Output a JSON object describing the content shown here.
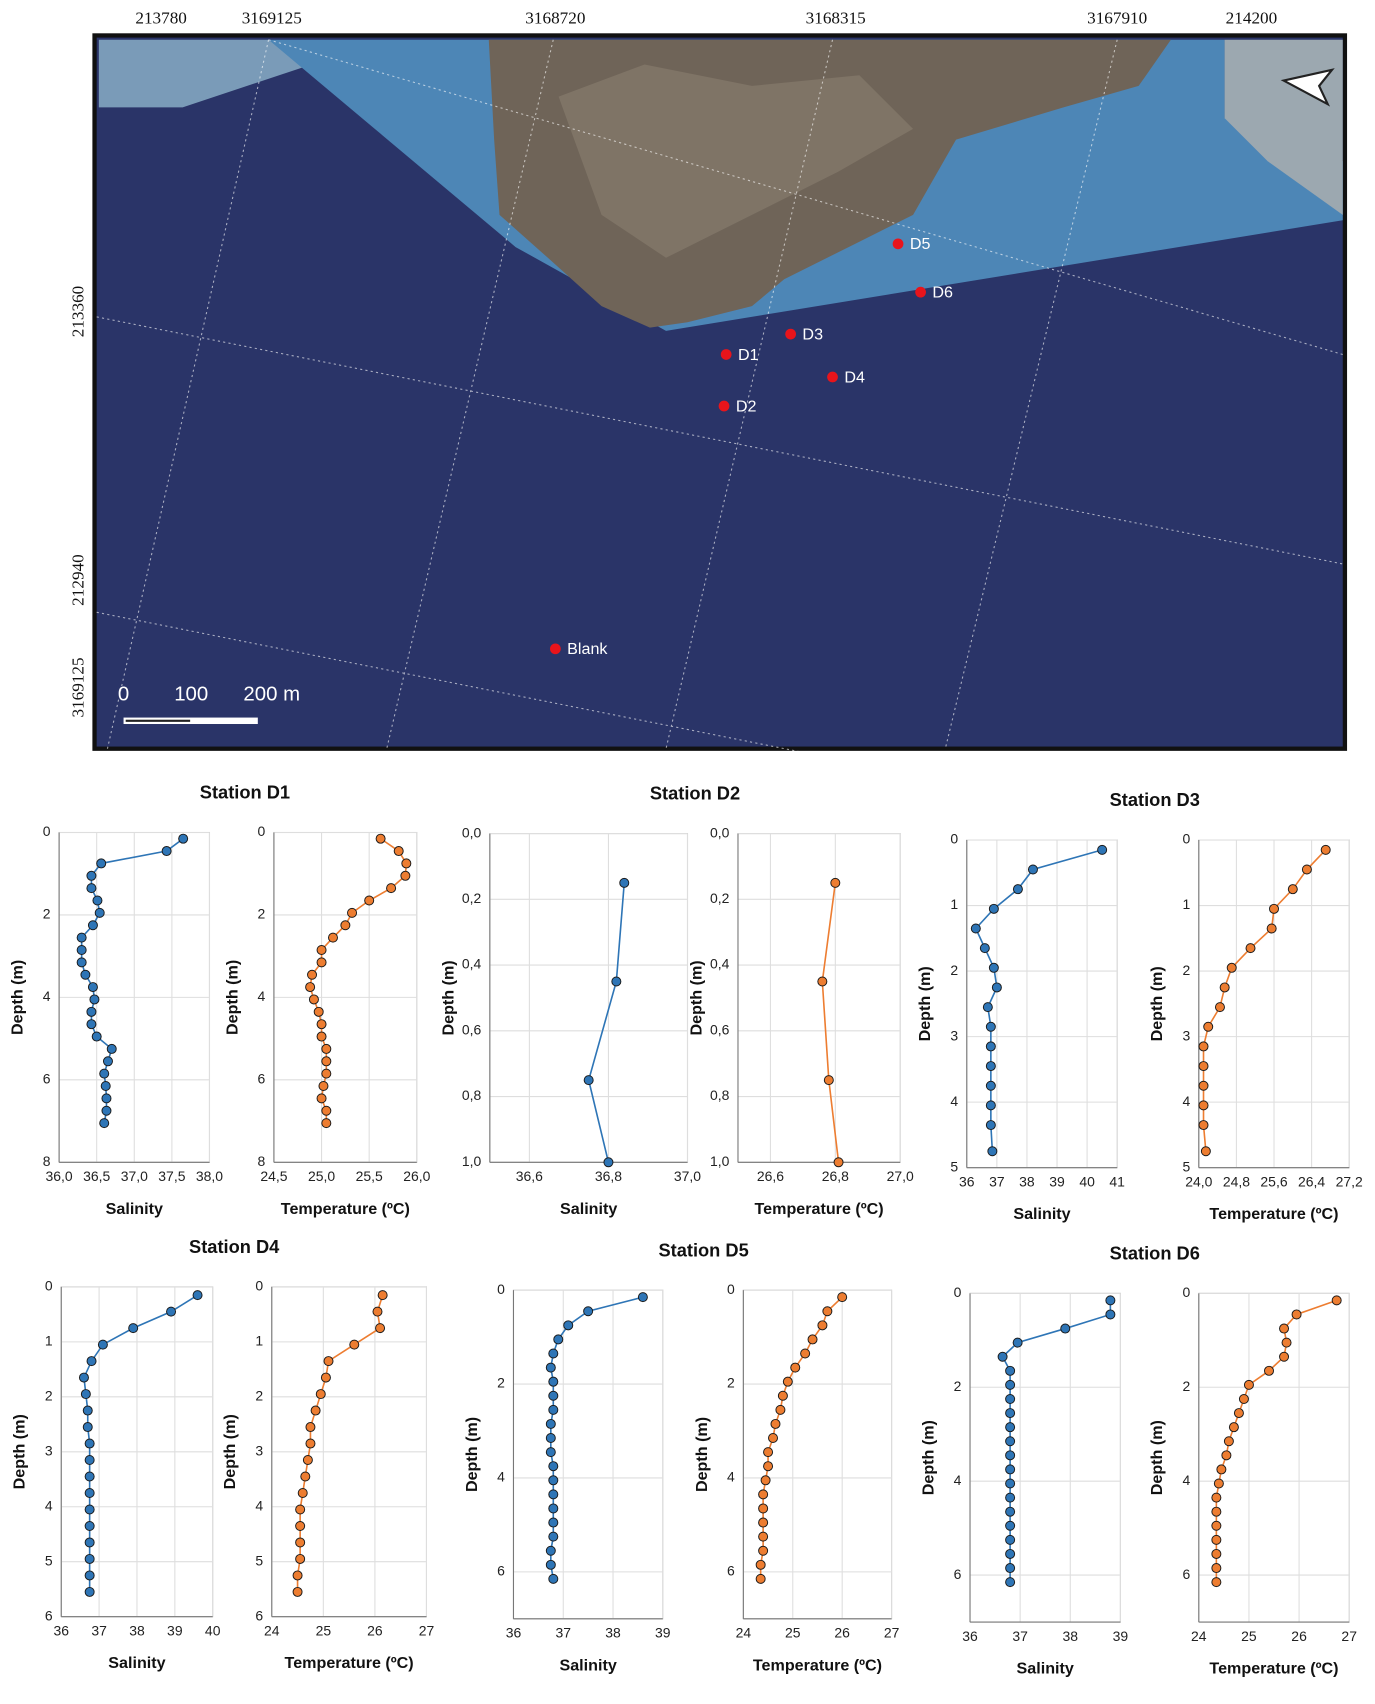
{
  "map": {
    "top_labels": [
      "213780",
      "3169125",
      "3168720",
      "3168315",
      "3167910",
      "214200"
    ],
    "left_labels": [
      "213360",
      "212940",
      "3169125"
    ],
    "scale_labels": [
      "0",
      "100",
      "200 m"
    ],
    "stations": [
      "D5",
      "D6",
      "D3",
      "D1",
      "D4",
      "D2",
      "Blank"
    ]
  },
  "chart_data": [
    {
      "type": "line",
      "title": "Station D1",
      "x_label": "Salinity",
      "y_label": "Depth (m)",
      "color": "#2e75b6",
      "y_inverted": true,
      "grid": true,
      "xlim": [
        36,
        38
      ],
      "xticks": [
        {
          "value": 36,
          "label": "36,0"
        },
        {
          "value": 36.5,
          "label": "36,5"
        },
        {
          "value": 37,
          "label": "37,0"
        },
        {
          "value": 37.5,
          "label": "37,5"
        },
        {
          "value": 38,
          "label": "38,0"
        }
      ],
      "ylim": [
        0,
        8
      ],
      "yticks": [
        0,
        2,
        4,
        6,
        8
      ],
      "depth": [
        0.15,
        0.45,
        0.75,
        1.05,
        1.35,
        1.65,
        1.95,
        2.25,
        2.55,
        2.85,
        3.15,
        3.45,
        3.75,
        4.05,
        4.35,
        4.65,
        4.95,
        5.25,
        5.55,
        5.85,
        6.15,
        6.45,
        6.75,
        7.05
      ],
      "values": [
        37.65,
        37.43,
        36.56,
        36.43,
        36.43,
        36.51,
        36.54,
        36.45,
        36.3,
        36.3,
        36.3,
        36.35,
        36.45,
        36.47,
        36.43,
        36.43,
        36.5,
        36.7,
        36.65,
        36.6,
        36.62,
        36.63,
        36.63,
        36.6
      ]
    },
    {
      "type": "line",
      "x_label": "Temperature (ºC)",
      "y_label": "Depth (m)",
      "color": "#ed7d31",
      "y_inverted": true,
      "grid": true,
      "xlim": [
        24.5,
        26
      ],
      "xticks": [
        {
          "value": 24.5,
          "label": "24,5"
        },
        {
          "value": 25,
          "label": "25,0"
        },
        {
          "value": 25.5,
          "label": "25,5"
        },
        {
          "value": 26,
          "label": "26,0"
        }
      ],
      "ylim": [
        0,
        8
      ],
      "yticks": [
        0,
        2,
        4,
        6,
        8
      ],
      "depth": [
        0.15,
        0.45,
        0.75,
        1.05,
        1.35,
        1.65,
        1.95,
        2.25,
        2.55,
        2.85,
        3.15,
        3.45,
        3.75,
        4.05,
        4.35,
        4.65,
        4.95,
        5.25,
        5.55,
        5.85,
        6.15,
        6.45,
        6.75,
        7.05
      ],
      "values": [
        25.62,
        25.81,
        25.89,
        25.88,
        25.73,
        25.5,
        25.32,
        25.25,
        25.12,
        25.0,
        25.0,
        24.9,
        24.88,
        24.92,
        24.97,
        25.0,
        25.0,
        25.05,
        25.05,
        25.05,
        25.02,
        25.0,
        25.05,
        25.05
      ]
    },
    {
      "type": "line",
      "title": "Station D2",
      "x_label": "Salinity",
      "y_label": "Depth (m)",
      "color": "#2e75b6",
      "y_inverted": true,
      "grid": true,
      "xlim": [
        36.5,
        37
      ],
      "xticks": [
        {
          "value": 36.6,
          "label": "36,6"
        },
        {
          "value": 36.8,
          "label": "36,8"
        },
        {
          "value": 37,
          "label": "37,0"
        }
      ],
      "ylim": [
        0,
        1
      ],
      "yticks": [
        {
          "value": 0,
          "label": "0,0"
        },
        {
          "value": 0.2,
          "label": "0,2"
        },
        {
          "value": 0.4,
          "label": "0,4"
        },
        {
          "value": 0.6,
          "label": "0,6"
        },
        {
          "value": 0.8,
          "label": "0,8"
        },
        {
          "value": 1,
          "label": "1,0"
        }
      ],
      "depth": [
        0.15,
        0.45,
        0.75,
        1.0
      ],
      "values": [
        36.84,
        36.82,
        36.75,
        36.8
      ]
    },
    {
      "type": "line",
      "x_label": "Temperature (ºC)",
      "y_label": "Depth (m)",
      "color": "#ed7d31",
      "y_inverted": true,
      "grid": true,
      "xlim": [
        26.5,
        27
      ],
      "xticks": [
        {
          "value": 26.6,
          "label": "26,6"
        },
        {
          "value": 26.8,
          "label": "26,8"
        },
        {
          "value": 27,
          "label": "27,0"
        }
      ],
      "ylim": [
        0,
        1
      ],
      "yticks": [
        {
          "value": 0,
          "label": "0,0"
        },
        {
          "value": 0.2,
          "label": "0,2"
        },
        {
          "value": 0.4,
          "label": "0,4"
        },
        {
          "value": 0.6,
          "label": "0,6"
        },
        {
          "value": 0.8,
          "label": "0,8"
        },
        {
          "value": 1,
          "label": "1,0"
        }
      ],
      "depth": [
        0.15,
        0.45,
        0.75,
        1.0
      ],
      "values": [
        26.8,
        26.76,
        26.78,
        26.81
      ]
    },
    {
      "type": "line",
      "title": "Station D3",
      "x_label": "Salinity",
      "y_label": "Depth (m)",
      "color": "#2e75b6",
      "y_inverted": true,
      "grid": true,
      "xlim": [
        36,
        41
      ],
      "xticks": [
        36,
        37,
        38,
        39,
        40,
        41
      ],
      "ylim": [
        0,
        5
      ],
      "yticks": [
        0,
        1,
        2,
        3,
        4,
        5
      ],
      "depth": [
        0.15,
        0.45,
        0.75,
        1.05,
        1.35,
        1.65,
        1.95,
        2.25,
        2.55,
        2.85,
        3.15,
        3.45,
        3.75,
        4.05,
        4.35,
        4.75
      ],
      "values": [
        40.5,
        38.2,
        37.7,
        36.9,
        36.3,
        36.6,
        36.9,
        37.0,
        36.7,
        36.8,
        36.8,
        36.8,
        36.8,
        36.8,
        36.8,
        36.85
      ]
    },
    {
      "type": "line",
      "x_label": "Temperature (ºC)",
      "y_label": "Depth (m)",
      "color": "#ed7d31",
      "y_inverted": true,
      "grid": true,
      "xlim": [
        24,
        27.2
      ],
      "xticks": [
        {
          "value": 24,
          "label": "24,0"
        },
        {
          "value": 24.8,
          "label": "24,8"
        },
        {
          "value": 25.6,
          "label": "25,6"
        },
        {
          "value": 26.4,
          "label": "26,4"
        },
        {
          "value": 27.2,
          "label": "27,2"
        }
      ],
      "ylim": [
        0,
        5
      ],
      "yticks": [
        0,
        1,
        2,
        3,
        4,
        5
      ],
      "depth": [
        0.15,
        0.45,
        0.75,
        1.05,
        1.35,
        1.65,
        1.95,
        2.25,
        2.55,
        2.85,
        3.15,
        3.45,
        3.75,
        4.05,
        4.35,
        4.75
      ],
      "values": [
        26.7,
        26.3,
        26.0,
        25.6,
        25.55,
        25.1,
        24.7,
        24.55,
        24.45,
        24.2,
        24.1,
        24.1,
        24.1,
        24.1,
        24.1,
        24.15
      ]
    },
    {
      "type": "line",
      "title": "Station D4",
      "x_label": "Salinity",
      "y_label": "Depth (m)",
      "color": "#2e75b6",
      "y_inverted": true,
      "grid": true,
      "xlim": [
        36,
        40
      ],
      "xticks": [
        36,
        37,
        38,
        39,
        40
      ],
      "ylim": [
        0,
        6
      ],
      "yticks": [
        0,
        1,
        2,
        3,
        4,
        5,
        6
      ],
      "depth": [
        0.15,
        0.45,
        0.75,
        1.05,
        1.35,
        1.65,
        1.95,
        2.25,
        2.55,
        2.85,
        3.15,
        3.45,
        3.75,
        4.05,
        4.35,
        4.65,
        4.95,
        5.25,
        5.55
      ],
      "values": [
        39.6,
        38.9,
        37.9,
        37.1,
        36.8,
        36.6,
        36.65,
        36.7,
        36.7,
        36.75,
        36.75,
        36.75,
        36.75,
        36.75,
        36.75,
        36.75,
        36.75,
        36.75,
        36.75
      ]
    },
    {
      "type": "line",
      "x_label": "Temperature (ºC)",
      "y_label": "Depth (m)",
      "color": "#ed7d31",
      "y_inverted": true,
      "grid": true,
      "xlim": [
        24,
        27
      ],
      "xticks": [
        24,
        25,
        26,
        27
      ],
      "ylim": [
        0,
        6
      ],
      "yticks": [
        0,
        1,
        2,
        3,
        4,
        5,
        6
      ],
      "depth": [
        0.15,
        0.45,
        0.75,
        1.05,
        1.35,
        1.65,
        1.95,
        2.25,
        2.55,
        2.85,
        3.15,
        3.45,
        3.75,
        4.05,
        4.35,
        4.65,
        4.95,
        5.25,
        5.55
      ],
      "values": [
        26.15,
        26.05,
        26.1,
        25.6,
        25.1,
        25.05,
        24.95,
        24.85,
        24.75,
        24.75,
        24.7,
        24.65,
        24.6,
        24.55,
        24.55,
        24.55,
        24.55,
        24.5,
        24.5
      ]
    },
    {
      "type": "line",
      "title": "Station D5",
      "x_label": "Salinity",
      "y_label": "Depth (m)",
      "color": "#2e75b6",
      "y_inverted": true,
      "grid": true,
      "xlim": [
        36,
        39
      ],
      "xticks": [
        36,
        37,
        38,
        39
      ],
      "ylim": [
        0,
        7
      ],
      "yticks": [
        0,
        2,
        4,
        6
      ],
      "depth": [
        0.15,
        0.45,
        0.75,
        1.05,
        1.35,
        1.65,
        1.95,
        2.25,
        2.55,
        2.85,
        3.15,
        3.45,
        3.75,
        4.05,
        4.35,
        4.65,
        4.95,
        5.25,
        5.55,
        5.85,
        6.15
      ],
      "values": [
        38.6,
        37.5,
        37.1,
        36.9,
        36.8,
        36.75,
        36.8,
        36.8,
        36.8,
        36.75,
        36.75,
        36.75,
        36.8,
        36.8,
        36.8,
        36.8,
        36.8,
        36.8,
        36.75,
        36.75,
        36.8
      ]
    },
    {
      "type": "line",
      "x_label": "Temperature (ºC)",
      "y_label": "Depth (m)",
      "color": "#ed7d31",
      "y_inverted": true,
      "grid": true,
      "xlim": [
        24,
        27
      ],
      "xticks": [
        24,
        25,
        26,
        27
      ],
      "ylim": [
        0,
        7
      ],
      "yticks": [
        0,
        2,
        4,
        6
      ],
      "depth": [
        0.15,
        0.45,
        0.75,
        1.05,
        1.35,
        1.65,
        1.95,
        2.25,
        2.55,
        2.85,
        3.15,
        3.45,
        3.75,
        4.05,
        4.35,
        4.65,
        4.95,
        5.25,
        5.55,
        5.85,
        6.15
      ],
      "values": [
        26.0,
        25.7,
        25.6,
        25.4,
        25.25,
        25.05,
        24.9,
        24.8,
        24.75,
        24.65,
        24.6,
        24.5,
        24.5,
        24.45,
        24.4,
        24.4,
        24.4,
        24.4,
        24.4,
        24.35,
        24.35
      ]
    },
    {
      "type": "line",
      "title": "Station D6",
      "x_label": "Salinity",
      "y_label": "Depth (m)",
      "color": "#2e75b6",
      "y_inverted": true,
      "grid": true,
      "xlim": [
        36,
        39
      ],
      "xticks": [
        36,
        37,
        38,
        39
      ],
      "ylim": [
        0,
        7
      ],
      "yticks": [
        0,
        2,
        4,
        6
      ],
      "depth": [
        0.15,
        0.45,
        0.75,
        1.05,
        1.35,
        1.65,
        1.95,
        2.25,
        2.55,
        2.85,
        3.15,
        3.45,
        3.75,
        4.05,
        4.35,
        4.65,
        4.95,
        5.25,
        5.55,
        5.85,
        6.15
      ],
      "values": [
        38.8,
        38.8,
        37.9,
        36.95,
        36.65,
        36.8,
        36.8,
        36.8,
        36.8,
        36.8,
        36.8,
        36.8,
        36.8,
        36.8,
        36.8,
        36.8,
        36.8,
        36.8,
        36.8,
        36.8,
        36.8
      ]
    },
    {
      "type": "line",
      "x_label": "Temperature (ºC)",
      "y_label": "Depth (m)",
      "color": "#ed7d31",
      "y_inverted": true,
      "grid": true,
      "xlim": [
        24,
        27
      ],
      "xticks": [
        24,
        25,
        26,
        27
      ],
      "ylim": [
        0,
        7
      ],
      "yticks": [
        0,
        2,
        4,
        6
      ],
      "depth": [
        0.15,
        0.45,
        0.75,
        1.05,
        1.35,
        1.65,
        1.95,
        2.25,
        2.55,
        2.85,
        3.15,
        3.45,
        3.75,
        4.05,
        4.35,
        4.65,
        4.95,
        5.25,
        5.55,
        5.85,
        6.15
      ],
      "values": [
        26.75,
        25.95,
        25.7,
        25.75,
        25.7,
        25.4,
        25.0,
        24.9,
        24.8,
        24.7,
        24.6,
        24.55,
        24.45,
        24.4,
        24.35,
        24.35,
        24.35,
        24.35,
        24.35,
        24.35,
        24.35
      ]
    }
  ]
}
